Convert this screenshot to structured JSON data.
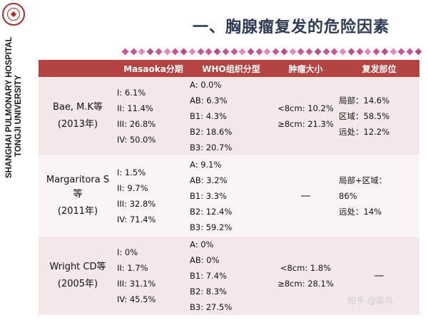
{
  "sidebar": {
    "hospital": "SHANGHAI PULMONARY HOSPITAL",
    "university": "TONGJI UNIVERSITY",
    "logo_icon": "hospital-seal-icon"
  },
  "title": "一、胸腺瘤复发的危险因素",
  "table": {
    "headers": [
      "",
      "Masaoka分期",
      "WHO组织分型",
      "肿瘤大小",
      "复发部位"
    ],
    "rows": [
      {
        "study": "Bae, M.K等",
        "year": "(2013年)",
        "masaoka": [
          "I: 6.1%",
          "II: 11.4%",
          "III: 26.8%",
          "IV: 50.0%"
        ],
        "who": [
          "A: 0.0%",
          "AB: 6.3%",
          "B1: 4.3%",
          "B2: 18.6%",
          "B3: 20.7%"
        ],
        "size": [
          "<8cm: 10.2%",
          "≥8cm: 21.3%"
        ],
        "recurrence": [
          "局部：14.6%",
          "区域：58.5%",
          "远处：12.2%"
        ]
      },
      {
        "study": "Margaritora S\n等",
        "study_line1": "Margaritora S",
        "study_line2": "等",
        "year": "(2011年)",
        "masaoka": [
          "I: 1.5%",
          "II: 9.7%",
          "III: 32.8%",
          "IV: 71.4%"
        ],
        "who": [
          "A: 9.1%",
          "AB: 3.2%",
          "B1: 3.3%",
          "B2: 12.4%",
          "B3: 59.2%"
        ],
        "size": [
          "—"
        ],
        "recurrence": [
          "局部+区域：",
          "86%",
          "远处：14%"
        ]
      },
      {
        "study": "Wright CD等",
        "year": "(2005年)",
        "masaoka": [
          "I: 0%",
          "II: 1.7%",
          "III: 31.1%",
          "IV: 45.5%"
        ],
        "who": [
          "A: 0%",
          "AB: 0%",
          "B1: 7.4%",
          "B2: 8.3%",
          "B3: 27.5%"
        ],
        "size": [
          "<8cm: 1.8%",
          "≥8cm: 28.1%"
        ],
        "recurrence": [
          "—"
        ]
      }
    ]
  },
  "watermark": "知乎 @菜鸟",
  "colors": {
    "header_bg": "#b44442",
    "row_bg_a": "#f5e8e8",
    "row_bg_b": "#fbf4f4",
    "title": "#2f3a55",
    "diamond": "#c7438a"
  }
}
